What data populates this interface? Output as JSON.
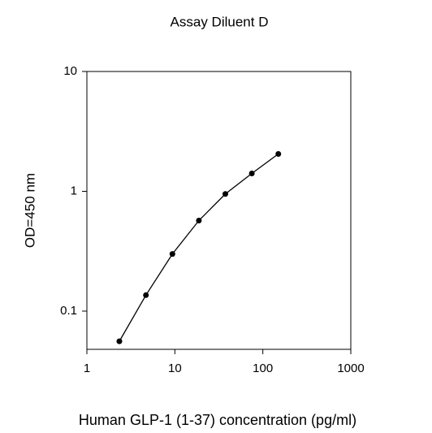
{
  "chart_data": {
    "type": "line",
    "title": "Assay Diluent D",
    "xlabel": "Human GLP-1 (1-37) concentration (pg/ml)",
    "ylabel": "OD=450 nm",
    "xscale": "log",
    "yscale": "log",
    "x": [
      2.34,
      4.69,
      9.38,
      18.75,
      37.5,
      75,
      150
    ],
    "series": [
      {
        "name": "Assay Diluent D",
        "color": "#000000",
        "values": [
          0.056,
          0.136,
          0.3,
          0.57,
          0.95,
          1.41,
          2.05
        ]
      }
    ],
    "xlim": [
      1,
      1000
    ],
    "xticks": [
      1,
      10,
      100,
      1000
    ],
    "ylim": [
      0.048,
      10
    ],
    "yticks": [
      0.1,
      1,
      10
    ]
  }
}
